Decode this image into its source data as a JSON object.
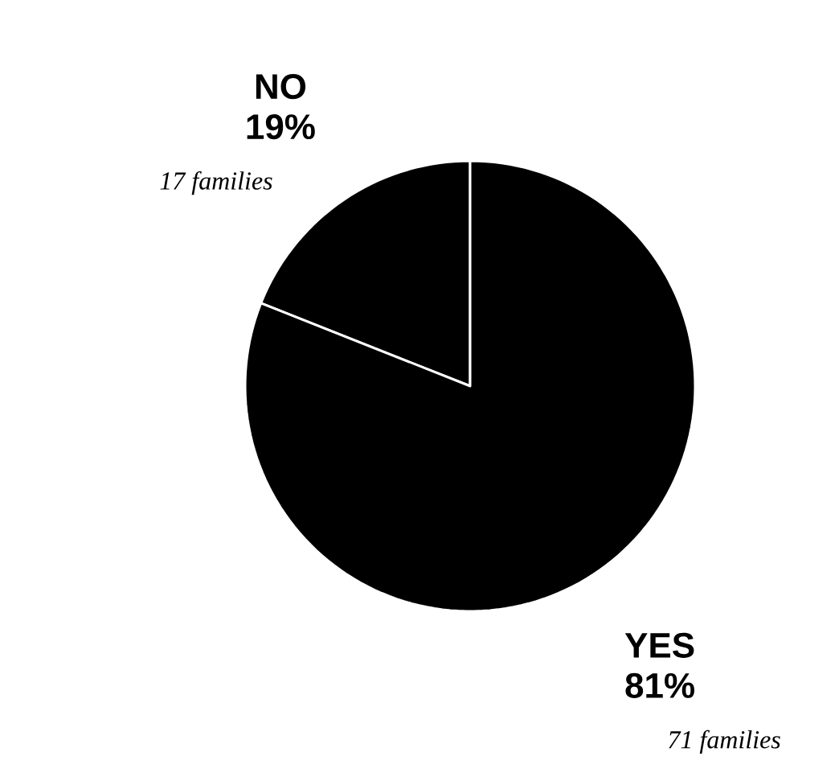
{
  "chart_data": {
    "type": "pie",
    "categories": [
      "NO",
      "YES"
    ],
    "values": [
      19,
      81
    ],
    "value_labels": [
      "19%",
      "81%"
    ],
    "colors": [
      "#000000",
      "#000000"
    ],
    "annotations": [
      "17 families",
      "71 families"
    ]
  }
}
